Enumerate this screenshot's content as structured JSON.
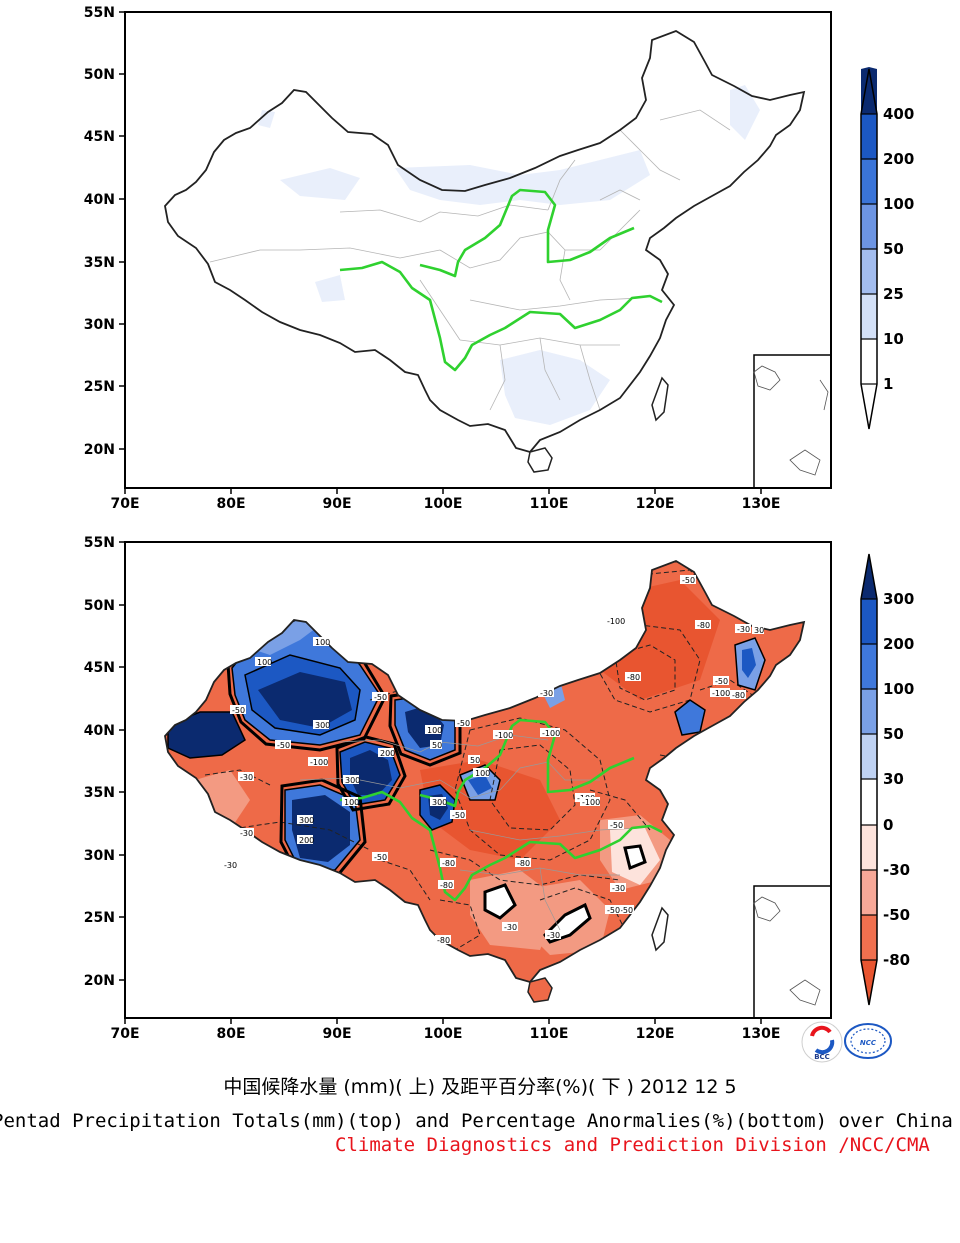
{
  "axes": {
    "lat_labels": [
      "55N",
      "50N",
      "45N",
      "40N",
      "35N",
      "30N",
      "25N",
      "20N"
    ],
    "lon_labels": [
      "70E",
      "80E",
      "90E",
      "100E",
      "110E",
      "120E",
      "130E"
    ]
  },
  "top_map": {
    "colorbar": {
      "levels": [
        "400",
        "200",
        "100",
        "50",
        "25",
        "10",
        "1"
      ],
      "colors": [
        "#0b2a6f",
        "#1c58c3",
        "#3a74d8",
        "#6d95e3",
        "#a3bdef",
        "#d3e0f7",
        "#ffffff"
      ]
    }
  },
  "bottom_map": {
    "colorbar": {
      "levels": [
        "300",
        "200",
        "100",
        "50",
        "30",
        "0",
        "-30",
        "-50",
        "-80"
      ],
      "colors": [
        "#0b2a6f",
        "#1c58c3",
        "#3f78db",
        "#7aa0e6",
        "#bfd2f3",
        "#ffffff",
        "#fde3dc",
        "#f7a898",
        "#f0704f",
        "#e85530"
      ]
    },
    "contour_labels": [
      "100",
      "100",
      "300",
      "-50",
      "-30",
      "-50",
      "-100",
      "300",
      "200",
      "100",
      "50",
      "-30",
      "-50",
      "-100",
      "300",
      "200",
      "100",
      "-50",
      "-80",
      "300",
      "100",
      "50",
      "-50",
      "-80",
      "-100",
      "-30",
      "30",
      "-50",
      "-100",
      "-80",
      "-80",
      "-100",
      "-50",
      "-30",
      "-50",
      "-100",
      "-30",
      "-50",
      "-80",
      "-30",
      "-30",
      "-80",
      "-50",
      "-80",
      "-100",
      "-50",
      "-30"
    ]
  },
  "logos": {
    "left": "BCC",
    "right": "NCC"
  },
  "title_cn": "中国候降水量 (mm)( 上) 及距平百分率(%)( 下 ) 2012 12 5",
  "title_en": "Pentad Precipitation Totals(mm)(top) and Percentage Anormalies(%)(bottom) over China",
  "credit": "Climate Diagnostics and Prediction Division /NCC/CMA"
}
